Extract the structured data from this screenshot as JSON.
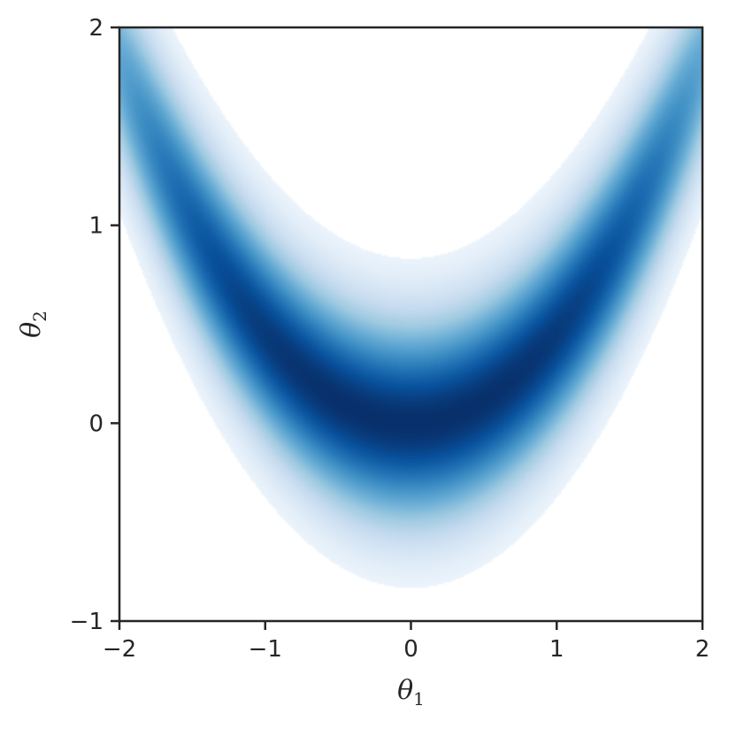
{
  "chart_data": {
    "type": "heatmap",
    "title": "",
    "xlabel": "θ1",
    "ylabel": "θ2",
    "xlabel_parts": {
      "symbol": "θ",
      "subscript": "1"
    },
    "ylabel_parts": {
      "symbol": "θ",
      "subscript": "2"
    },
    "xlim": [
      -2,
      2
    ],
    "ylim": [
      -1,
      2
    ],
    "xticks": [
      {
        "value": -2,
        "label": "−2"
      },
      {
        "value": -1,
        "label": "−1"
      },
      {
        "value": 0,
        "label": "0"
      },
      {
        "value": 1,
        "label": "1"
      },
      {
        "value": 2,
        "label": "2"
      }
    ],
    "yticks": [
      {
        "value": -1,
        "label": "−1"
      },
      {
        "value": 0,
        "label": "0"
      },
      {
        "value": 1,
        "label": "1"
      },
      {
        "value": 2,
        "label": "2"
      }
    ],
    "grid": false,
    "colormap": "Blues",
    "density": {
      "ridge": "theta2 = 0.45 * theta1^2",
      "ridge_coefficient": 0.45,
      "ridge_width": 0.28,
      "x_scale": 1.7
    },
    "colors": {
      "low": "#f7fbff",
      "mid": "#6baed6",
      "high": "#08306b",
      "axis": "#262626"
    }
  }
}
